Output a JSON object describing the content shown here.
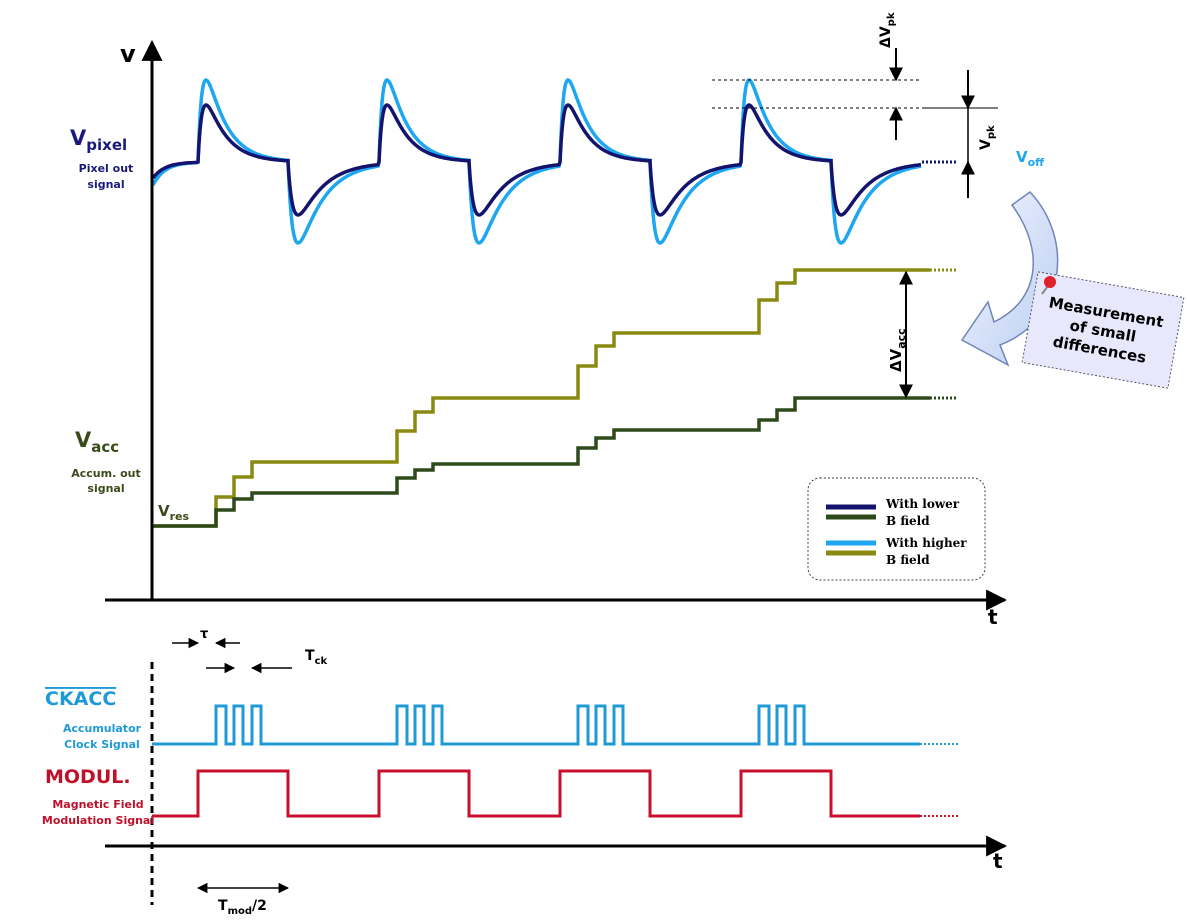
{
  "axes": {
    "upper_y_label": "v",
    "upper_x_label": "t",
    "lower_x_label": "t"
  },
  "pixel": {
    "label": {
      "main": "V",
      "sub": "pixel"
    },
    "description": [
      "Pixel out",
      "signal"
    ]
  },
  "offset": {
    "main": "V",
    "sub": "off"
  },
  "delta_peak": {
    "main": "ΔV",
    "sub": "pk"
  },
  "peak": {
    "main": "V",
    "sub": "pk"
  },
  "acc": {
    "label": {
      "main": "V",
      "sub": "acc"
    },
    "description": [
      "Accum. out",
      "signal"
    ]
  },
  "reset": {
    "main": "V",
    "sub": "res"
  },
  "delta_acc": {
    "main": "ΔV",
    "sub": "acc"
  },
  "note": [
    "Measurement",
    "of small",
    "differences"
  ],
  "legend": [
    {
      "lines": [
        "With lower",
        "B field"
      ]
    },
    {
      "lines": [
        "With higher",
        "B field"
      ]
    }
  ],
  "tau": "τ",
  "clock_period": {
    "main": "T",
    "sub": "ck"
  },
  "clock": {
    "label": "CKACC",
    "description": [
      "Accumulator",
      "Clock Signal"
    ]
  },
  "modulation": {
    "label": "MODUL.",
    "description": [
      "Magnetic Field",
      "Modulation Signal"
    ]
  },
  "half_period": {
    "main": "T",
    "sub": "mod",
    "suffix": "/2"
  }
}
